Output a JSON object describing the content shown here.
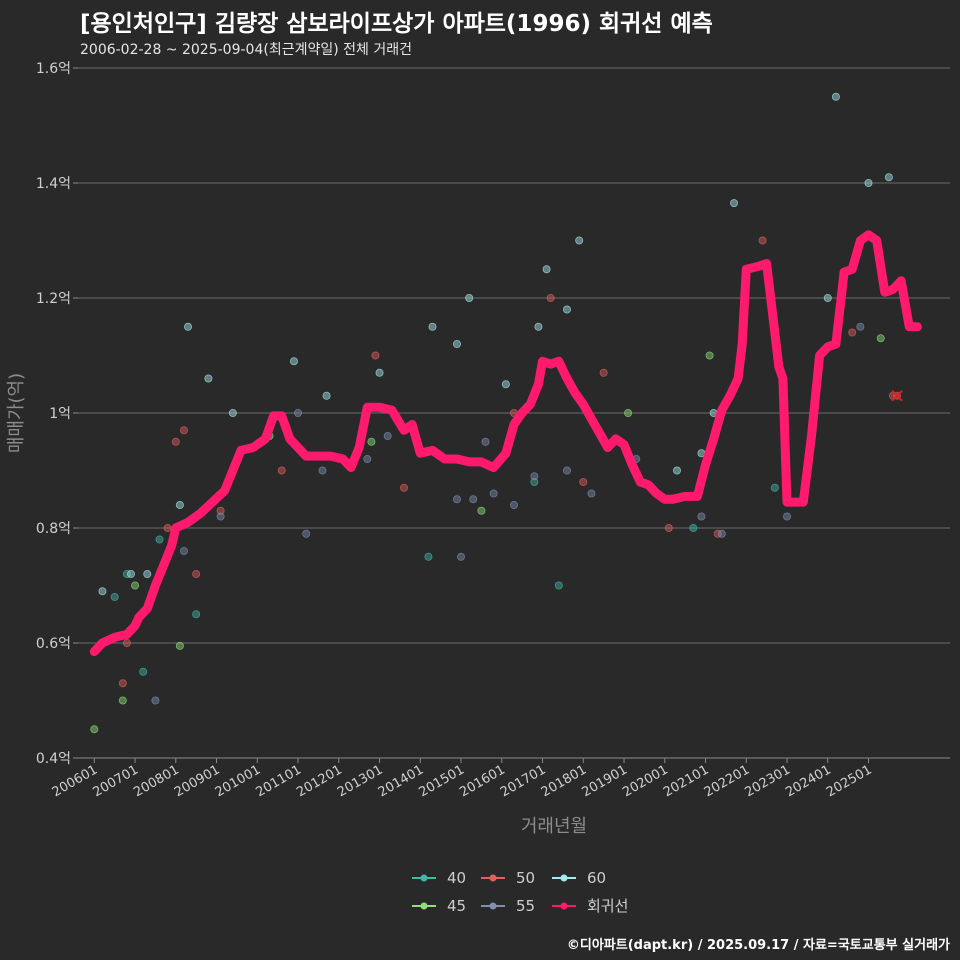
{
  "header": {
    "title": "[용인처인구] 김량장 삼보라이프상가 아파트(1996) 회귀선 예측",
    "subtitle": "2006-02-28 ~ 2025-09-04(최근계약일) 전체 거래건",
    "credit": "©디아파트(dapt.kr) / 2025.09.17 / 자료=국토교통부 실거래가"
  },
  "chart_data": {
    "type": "scatter",
    "title": "[용인처인구] 김량장 삼보라이프상가 아파트(1996) 회귀선 예측",
    "subtitle": "2006-02-28 ~ 2025-09-04(최근계약일) 전체 거래건",
    "xlabel": "거래년월",
    "ylabel": "매매가(억)",
    "x_unit": "year (decimal)",
    "y_unit": "억",
    "xlim": [
      2005.6,
      2027.0
    ],
    "ylim": [
      0.4,
      1.6
    ],
    "grid": "horizontal",
    "legend_position": "bottom",
    "y_ticks": [
      {
        "value": 0.4,
        "label": "0.4억"
      },
      {
        "value": 0.6,
        "label": "0.6억"
      },
      {
        "value": 0.8,
        "label": "0.8억"
      },
      {
        "value": 1.0,
        "label": "1억"
      },
      {
        "value": 1.2,
        "label": "1.2억"
      },
      {
        "value": 1.4,
        "label": "1.4억"
      },
      {
        "value": 1.6,
        "label": "1.6억"
      }
    ],
    "x_ticks": [
      {
        "value": 2006.0,
        "label": "200601"
      },
      {
        "value": 2007.0,
        "label": "200701"
      },
      {
        "value": 2008.0,
        "label": "200801"
      },
      {
        "value": 2009.0,
        "label": "200901"
      },
      {
        "value": 2010.0,
        "label": "201001"
      },
      {
        "value": 2011.0,
        "label": "201101"
      },
      {
        "value": 2012.0,
        "label": "201201"
      },
      {
        "value": 2013.0,
        "label": "201301"
      },
      {
        "value": 2014.0,
        "label": "201401"
      },
      {
        "value": 2015.0,
        "label": "201501"
      },
      {
        "value": 2016.0,
        "label": "201601"
      },
      {
        "value": 2017.0,
        "label": "201701"
      },
      {
        "value": 2018.0,
        "label": "201801"
      },
      {
        "value": 2019.0,
        "label": "201901"
      },
      {
        "value": 2020.0,
        "label": "202001"
      },
      {
        "value": 2021.0,
        "label": "202101"
      },
      {
        "value": 2022.0,
        "label": "202201"
      },
      {
        "value": 2023.0,
        "label": "202301"
      },
      {
        "value": 2024.0,
        "label": "202401"
      },
      {
        "value": 2025.0,
        "label": "202501"
      }
    ],
    "series": [
      {
        "name": "40",
        "color": "#3fb8a8",
        "points": [
          [
            2006.5,
            0.68
          ],
          [
            2006.8,
            0.72
          ],
          [
            2007.2,
            0.55
          ],
          [
            2007.6,
            0.78
          ],
          [
            2008.5,
            0.65
          ],
          [
            2014.2,
            0.75
          ],
          [
            2016.8,
            0.88
          ],
          [
            2017.4,
            0.7
          ],
          [
            2020.7,
            0.8
          ],
          [
            2022.7,
            0.87
          ]
        ]
      },
      {
        "name": "45",
        "color": "#8fe07a",
        "points": [
          [
            2006.0,
            0.45
          ],
          [
            2006.7,
            0.5
          ],
          [
            2007.0,
            0.7
          ],
          [
            2008.1,
            0.595
          ],
          [
            2010.3,
            0.96
          ],
          [
            2012.8,
            0.95
          ],
          [
            2015.5,
            0.83
          ],
          [
            2019.1,
            1.0
          ],
          [
            2021.1,
            1.1
          ],
          [
            2025.3,
            1.13
          ]
        ]
      },
      {
        "name": "50",
        "color": "#e06060",
        "points": [
          [
            2006.7,
            0.53
          ],
          [
            2006.8,
            0.6
          ],
          [
            2007.8,
            0.8
          ],
          [
            2008.0,
            0.95
          ],
          [
            2008.2,
            0.97
          ],
          [
            2008.5,
            0.72
          ],
          [
            2009.1,
            0.83
          ],
          [
            2010.6,
            0.9
          ],
          [
            2012.9,
            1.1
          ],
          [
            2013.6,
            0.87
          ],
          [
            2016.3,
            1.0
          ],
          [
            2017.2,
            1.2
          ],
          [
            2018.0,
            0.88
          ],
          [
            2018.5,
            1.07
          ],
          [
            2020.1,
            0.8
          ],
          [
            2021.3,
            0.79
          ],
          [
            2022.4,
            1.3
          ],
          [
            2024.6,
            1.14
          ],
          [
            2025.6,
            1.03
          ]
        ]
      },
      {
        "name": "55",
        "color": "#7f8fb0",
        "points": [
          [
            2007.5,
            0.5
          ],
          [
            2008.2,
            0.76
          ],
          [
            2009.1,
            0.82
          ],
          [
            2011.0,
            1.0
          ],
          [
            2011.2,
            0.79
          ],
          [
            2011.6,
            0.9
          ],
          [
            2012.7,
            0.92
          ],
          [
            2013.2,
            0.96
          ],
          [
            2014.9,
            0.85
          ],
          [
            2015.0,
            0.75
          ],
          [
            2015.3,
            0.85
          ],
          [
            2015.6,
            0.95
          ],
          [
            2015.8,
            0.86
          ],
          [
            2016.3,
            0.84
          ],
          [
            2016.8,
            0.89
          ],
          [
            2017.6,
            0.9
          ],
          [
            2018.2,
            0.86
          ],
          [
            2019.3,
            0.92
          ],
          [
            2020.9,
            0.82
          ],
          [
            2021.4,
            0.79
          ],
          [
            2023.0,
            0.82
          ],
          [
            2024.8,
            1.15
          ]
        ]
      },
      {
        "name": "60",
        "color": "#a8e8ee",
        "points": [
          [
            2006.2,
            0.69
          ],
          [
            2006.9,
            0.72
          ],
          [
            2007.3,
            0.72
          ],
          [
            2008.1,
            0.84
          ],
          [
            2008.3,
            1.15
          ],
          [
            2008.8,
            1.06
          ],
          [
            2009.4,
            1.0
          ],
          [
            2010.9,
            1.09
          ],
          [
            2011.7,
            1.03
          ],
          [
            2013.0,
            1.07
          ],
          [
            2014.3,
            1.15
          ],
          [
            2014.9,
            1.12
          ],
          [
            2015.2,
            1.2
          ],
          [
            2016.1,
            1.05
          ],
          [
            2016.9,
            1.15
          ],
          [
            2017.1,
            1.25
          ],
          [
            2017.6,
            1.18
          ],
          [
            2017.9,
            1.3
          ],
          [
            2020.3,
            0.9
          ],
          [
            2020.9,
            0.93
          ],
          [
            2021.2,
            1.0
          ],
          [
            2021.7,
            1.365
          ],
          [
            2024.2,
            1.55
          ],
          [
            2025.0,
            1.4
          ],
          [
            2025.5,
            1.41
          ],
          [
            2024.0,
            1.2
          ]
        ]
      }
    ],
    "regression": {
      "name": "회귀선",
      "color": "#ff1a6e",
      "points": [
        [
          2006.0,
          0.585
        ],
        [
          2006.2,
          0.6
        ],
        [
          2006.5,
          0.61
        ],
        [
          2006.8,
          0.615
        ],
        [
          2007.0,
          0.63
        ],
        [
          2007.1,
          0.645
        ],
        [
          2007.3,
          0.66
        ],
        [
          2007.5,
          0.7
        ],
        [
          2007.7,
          0.735
        ],
        [
          2007.9,
          0.77
        ],
        [
          2008.0,
          0.8
        ],
        [
          2008.3,
          0.81
        ],
        [
          2008.6,
          0.825
        ],
        [
          2008.9,
          0.845
        ],
        [
          2009.2,
          0.865
        ],
        [
          2009.4,
          0.9
        ],
        [
          2009.6,
          0.935
        ],
        [
          2009.9,
          0.94
        ],
        [
          2010.2,
          0.955
        ],
        [
          2010.4,
          0.995
        ],
        [
          2010.6,
          0.995
        ],
        [
          2010.8,
          0.955
        ],
        [
          2011.0,
          0.94
        ],
        [
          2011.2,
          0.925
        ],
        [
          2011.5,
          0.925
        ],
        [
          2011.8,
          0.925
        ],
        [
          2012.1,
          0.92
        ],
        [
          2012.3,
          0.905
        ],
        [
          2012.5,
          0.94
        ],
        [
          2012.7,
          1.01
        ],
        [
          2013.0,
          1.01
        ],
        [
          2013.3,
          1.005
        ],
        [
          2013.6,
          0.97
        ],
        [
          2013.8,
          0.98
        ],
        [
          2014.0,
          0.93
        ],
        [
          2014.3,
          0.935
        ],
        [
          2014.6,
          0.92
        ],
        [
          2014.9,
          0.92
        ],
        [
          2015.2,
          0.915
        ],
        [
          2015.5,
          0.915
        ],
        [
          2015.8,
          0.905
        ],
        [
          2016.1,
          0.93
        ],
        [
          2016.3,
          0.98
        ],
        [
          2016.5,
          1.0
        ],
        [
          2016.7,
          1.015
        ],
        [
          2016.9,
          1.05
        ],
        [
          2017.0,
          1.09
        ],
        [
          2017.2,
          1.085
        ],
        [
          2017.4,
          1.09
        ],
        [
          2017.6,
          1.06
        ],
        [
          2017.8,
          1.035
        ],
        [
          2018.0,
          1.015
        ],
        [
          2018.2,
          0.99
        ],
        [
          2018.4,
          0.965
        ],
        [
          2018.6,
          0.94
        ],
        [
          2018.8,
          0.955
        ],
        [
          2019.0,
          0.945
        ],
        [
          2019.2,
          0.91
        ],
        [
          2019.4,
          0.88
        ],
        [
          2019.6,
          0.875
        ],
        [
          2019.8,
          0.86
        ],
        [
          2020.0,
          0.85
        ],
        [
          2020.2,
          0.85
        ],
        [
          2020.5,
          0.855
        ],
        [
          2020.8,
          0.855
        ],
        [
          2021.0,
          0.91
        ],
        [
          2021.2,
          0.955
        ],
        [
          2021.4,
          1.005
        ],
        [
          2021.6,
          1.03
        ],
        [
          2021.8,
          1.06
        ],
        [
          2021.9,
          1.12
        ],
        [
          2022.0,
          1.25
        ],
        [
          2022.3,
          1.255
        ],
        [
          2022.5,
          1.26
        ],
        [
          2022.6,
          1.2
        ],
        [
          2022.8,
          1.08
        ],
        [
          2022.9,
          1.06
        ],
        [
          2023.0,
          0.845
        ],
        [
          2023.2,
          0.845
        ],
        [
          2023.4,
          0.845
        ],
        [
          2023.6,
          0.96
        ],
        [
          2023.8,
          1.1
        ],
        [
          2024.0,
          1.115
        ],
        [
          2024.2,
          1.12
        ],
        [
          2024.4,
          1.245
        ],
        [
          2024.6,
          1.25
        ],
        [
          2024.8,
          1.3
        ],
        [
          2025.0,
          1.31
        ],
        [
          2025.2,
          1.3
        ],
        [
          2025.4,
          1.21
        ],
        [
          2025.6,
          1.215
        ],
        [
          2025.8,
          1.23
        ],
        [
          2026.0,
          1.15
        ],
        [
          2026.2,
          1.15
        ]
      ]
    },
    "latest_trade": {
      "x": 2025.7,
      "y": 1.03
    }
  },
  "legend": {
    "items": [
      {
        "label": "40",
        "color": "#3fb8a8"
      },
      {
        "label": "50",
        "color": "#e06060"
      },
      {
        "label": "60",
        "color": "#a8e8ee"
      },
      {
        "label": "45",
        "color": "#8fe07a"
      },
      {
        "label": "55",
        "color": "#7f8fb0"
      },
      {
        "label": "회귀선",
        "color": "#ff1a6e"
      }
    ]
  }
}
